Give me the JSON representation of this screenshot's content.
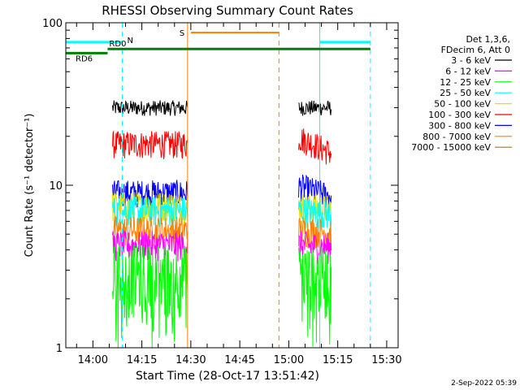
{
  "chart_data": {
    "type": "line",
    "title": "RHESSI Observing Summary Count Rates",
    "xlabel": "Start Time (28-Oct-17 13:51:42)",
    "ylabel": "Count Rate (s⁻¹ detector⁻¹)",
    "yscale": "log",
    "ylim": [
      1,
      100
    ],
    "xlim": [
      "13:51:42",
      "15:33:30"
    ],
    "x_tick_labels": [
      "14:00",
      "14:15",
      "14:30",
      "14:45",
      "15:00",
      "15:15",
      "15:30"
    ],
    "y_tick_labels": [
      "1",
      "10",
      "100"
    ],
    "legend": {
      "placement": "right",
      "header": [
        "Det 1,3,6,",
        "FDecim 6, Att 0"
      ],
      "entries": [
        {
          "label": "3 - 6 keV",
          "color": "#000000"
        },
        {
          "label": "6 - 12 keV",
          "color": "#ff00ff"
        },
        {
          "label": "12 - 25 keV",
          "color": "#00ff00"
        },
        {
          "label": "25 - 50 keV",
          "color": "#00ffff"
        },
        {
          "label": "50 - 100 keV",
          "color": "#e0e000"
        },
        {
          "label": "100 - 300 keV",
          "color": "#ff0000"
        },
        {
          "label": "300 - 800 keV",
          "color": "#0000ff"
        },
        {
          "label": "800 - 7000 keV",
          "color": "#ff8000"
        },
        {
          "label": "7000 - 15000 keV",
          "color": "#a08000"
        }
      ]
    },
    "intervals": [
      {
        "start": "14:06:00",
        "end": "14:29:00"
      },
      {
        "start": "15:03:00",
        "end": "15:13:00"
      }
    ],
    "series": [
      {
        "label": "3 - 6 keV",
        "color": "#000000",
        "base": 30,
        "noise": 0.05,
        "trend": [
          1.0,
          1.0
        ]
      },
      {
        "label": "100 - 300 keV",
        "color": "#ff0000",
        "base": 18,
        "noise": 0.09,
        "trend": [
          1.1,
          0.88
        ]
      },
      {
        "label": "300 - 800 keV",
        "color": "#0000ff",
        "base": 9,
        "noise": 0.09,
        "trend": [
          1.1,
          0.95
        ]
      },
      {
        "label": "50 - 100 keV",
        "color": "#e0e000",
        "base": 7.5,
        "noise": 0.1,
        "trend": [
          1.0,
          0.95
        ]
      },
      {
        "label": "25 - 50 keV",
        "color": "#00ffff",
        "base": 7,
        "noise": 0.1,
        "trend": [
          1.0,
          0.95
        ]
      },
      {
        "label": "800 - 7000 keV",
        "color": "#ff8000",
        "base": 5.3,
        "noise": 0.1,
        "trend": [
          1.0,
          0.97
        ]
      },
      {
        "label": "6 - 12 keV",
        "color": "#ff00ff",
        "base": 4.3,
        "noise": 0.1,
        "trend": [
          1.0,
          0.97
        ]
      },
      {
        "label": "12 - 25 keV",
        "color": "#00ff00",
        "base": 2.9,
        "noise": 0.22,
        "trend": [
          1.0,
          0.95
        ]
      }
    ],
    "flag_bars": [
      {
        "label": "N",
        "color": "#00ffff",
        "segments": [
          [
            "13:51:42",
            "14:09:00"
          ],
          [
            "15:09:30",
            "15:25:00"
          ]
        ],
        "level": 76,
        "width": 3
      },
      {
        "label": "RD0",
        "color": "#008000",
        "segments": [
          [
            "14:04:30",
            "15:25:00"
          ]
        ],
        "level": 69,
        "width": 3
      },
      {
        "label": "RD6",
        "color": "#008000",
        "segments": [
          [
            "13:51:42",
            "14:04:30"
          ]
        ],
        "level": 65,
        "width": 3
      },
      {
        "label": "S",
        "color": "#ff8000",
        "segments": [
          [
            "14:30:00",
            "14:57:00"
          ]
        ],
        "level": 87,
        "width": 2
      }
    ],
    "vertical_markers": [
      {
        "x": "13:51:42",
        "color": "#00ffff",
        "style": "solid"
      },
      {
        "x": "14:09:00",
        "color": "#00ffff",
        "style": "dashed"
      },
      {
        "x": "15:09:30",
        "color": "#00ffff",
        "style": "solid"
      },
      {
        "x": "15:25:00",
        "color": "#00ffff",
        "style": "dashed"
      },
      {
        "x": "14:29:00",
        "color": "#ff8000",
        "style": "solid"
      },
      {
        "x": "14:57:00",
        "color": "#ff8000",
        "style": "dashed"
      }
    ]
  },
  "footer": {
    "timestamp": "2-Sep-2022 05:39"
  }
}
